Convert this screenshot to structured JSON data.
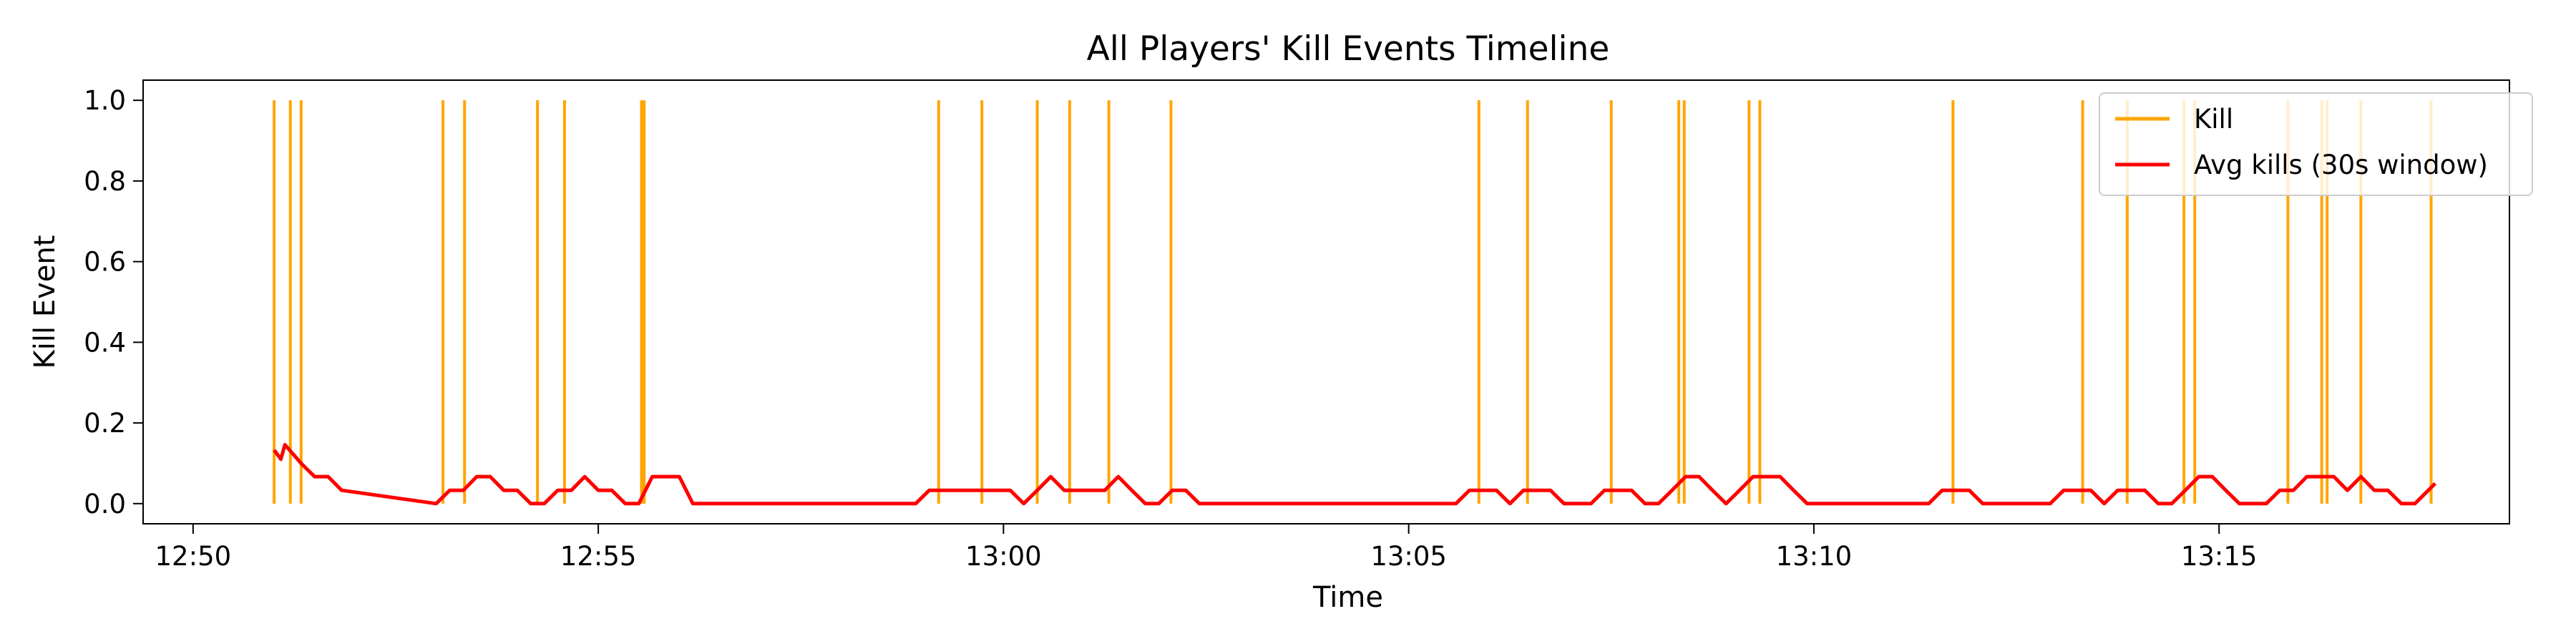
{
  "chart_data": {
    "type": "line",
    "title": "All Players' Kill Events Timeline",
    "xlabel": "Time",
    "ylabel": "Kill Event",
    "x_is_time": true,
    "xlim": [
      "12:49:23",
      "13:18:35"
    ],
    "ylim": [
      -0.05,
      1.05
    ],
    "x_ticks": [
      "12:50",
      "12:55",
      "13:00",
      "13:05",
      "13:10",
      "13:15"
    ],
    "y_ticks": [
      0.0,
      0.2,
      0.4,
      0.6,
      0.8,
      1.0
    ],
    "y_tick_labels": [
      "0.0",
      "0.2",
      "0.4",
      "0.6",
      "0.8",
      "1.0"
    ],
    "grid": false,
    "legend_position": "top-right",
    "series": [
      {
        "name": "Kill",
        "kind": "vertical-lines",
        "color": "#FFA500",
        "values": 1.0,
        "x": [
          "12:51:00",
          "12:51:12",
          "12:51:20",
          "12:53:05",
          "12:53:21",
          "12:54:15",
          "12:54:35",
          "12:55:32",
          "12:55:34",
          "12:59:12",
          "12:59:44",
          "13:00:25",
          "13:00:49",
          "13:01:18",
          "13:02:04",
          "13:05:52",
          "13:06:28",
          "13:07:30",
          "13:08:20",
          "13:08:24",
          "13:09:12",
          "13:09:20",
          "13:11:43",
          "13:13:19",
          "13:13:52",
          "13:14:34",
          "13:14:42",
          "13:15:51",
          "13:16:16",
          "13:16:20",
          "13:16:45",
          "13:17:37"
        ]
      },
      {
        "name": "Avg kills (30s window)",
        "kind": "line",
        "color": "#FF0000",
        "x": [
          "12:51:00",
          "12:51:05",
          "12:51:08",
          "12:51:20",
          "12:51:30",
          "12:51:40",
          "12:51:50",
          "12:53:00",
          "12:53:10",
          "12:53:20",
          "12:53:30",
          "12:53:40",
          "12:53:50",
          "12:54:00",
          "12:54:10",
          "12:54:20",
          "12:54:30",
          "12:54:40",
          "12:54:50",
          "12:55:00",
          "12:55:10",
          "12:55:20",
          "12:55:30",
          "12:55:40",
          "12:55:50",
          "12:56:00",
          "12:56:10",
          "12:58:55",
          "12:59:05",
          "12:59:15",
          "12:59:25",
          "12:59:35",
          "12:59:45",
          "12:59:55",
          "13:00:05",
          "13:00:15",
          "13:00:25",
          "13:00:35",
          "13:00:45",
          "13:00:55",
          "13:01:05",
          "13:01:15",
          "13:01:25",
          "13:01:35",
          "13:01:45",
          "13:01:55",
          "13:02:05",
          "13:02:15",
          "13:02:25",
          "13:05:35",
          "13:05:45",
          "13:05:55",
          "13:06:05",
          "13:06:15",
          "13:06:25",
          "13:06:35",
          "13:06:45",
          "13:06:55",
          "13:07:05",
          "13:07:15",
          "13:07:25",
          "13:07:35",
          "13:07:45",
          "13:07:55",
          "13:08:05",
          "13:08:15",
          "13:08:25",
          "13:08:35",
          "13:08:45",
          "13:08:55",
          "13:09:05",
          "13:09:15",
          "13:09:25",
          "13:09:35",
          "13:09:45",
          "13:09:55",
          "13:11:25",
          "13:11:35",
          "13:11:45",
          "13:11:55",
          "13:12:05",
          "13:12:15",
          "13:12:55",
          "13:13:05",
          "13:13:15",
          "13:13:25",
          "13:13:35",
          "13:13:45",
          "13:13:55",
          "13:14:05",
          "13:14:15",
          "13:14:25",
          "13:14:35",
          "13:14:45",
          "13:14:55",
          "13:15:05",
          "13:15:15",
          "13:15:35",
          "13:15:45",
          "13:15:55",
          "13:16:05",
          "13:16:15",
          "13:16:25",
          "13:16:35",
          "13:16:45",
          "13:16:55",
          "13:17:05",
          "13:17:15",
          "13:17:25",
          "13:17:35",
          "13:17:40"
        ],
        "values": [
          0.133,
          0.11,
          0.146,
          0.1,
          0.067,
          0.067,
          0.033,
          0.0,
          0.033,
          0.033,
          0.067,
          0.067,
          0.033,
          0.033,
          0.0,
          0.0,
          0.033,
          0.033,
          0.067,
          0.033,
          0.033,
          0.0,
          0.0,
          0.067,
          0.067,
          0.067,
          0.0,
          0.0,
          0.033,
          0.033,
          0.033,
          0.033,
          0.033,
          0.033,
          0.033,
          0.0,
          0.033,
          0.067,
          0.033,
          0.033,
          0.033,
          0.033,
          0.067,
          0.033,
          0.0,
          0.0,
          0.033,
          0.033,
          0.0,
          0.0,
          0.033,
          0.033,
          0.033,
          0.0,
          0.033,
          0.033,
          0.033,
          0.0,
          0.0,
          0.0,
          0.033,
          0.033,
          0.033,
          0.0,
          0.0,
          0.033,
          0.067,
          0.067,
          0.033,
          0.0,
          0.033,
          0.067,
          0.067,
          0.067,
          0.033,
          0.0,
          0.0,
          0.033,
          0.033,
          0.033,
          0.0,
          0.0,
          0.0,
          0.033,
          0.033,
          0.033,
          0.0,
          0.033,
          0.033,
          0.033,
          0.0,
          0.0,
          0.033,
          0.067,
          0.067,
          0.033,
          0.0,
          0.0,
          0.033,
          0.033,
          0.067,
          0.067,
          0.067,
          0.033,
          0.067,
          0.033,
          0.033,
          0.0,
          0.0,
          0.033,
          0.05
        ]
      }
    ]
  }
}
